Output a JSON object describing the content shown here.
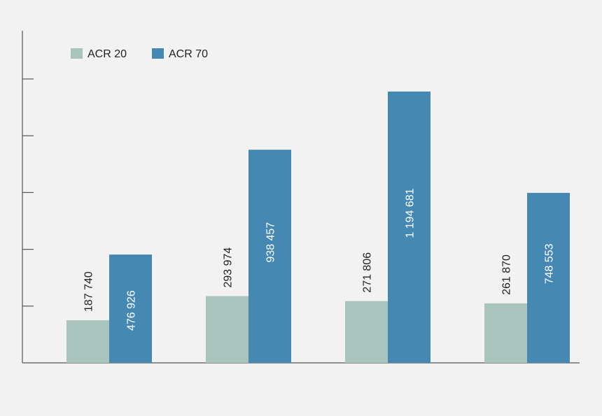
{
  "chart_data": {
    "type": "bar",
    "categories": [
      "",
      "",
      "",
      ""
    ],
    "series": [
      {
        "name": "ACR 20",
        "color": "#a9c4bc",
        "label_color": "#222222",
        "values": [
          187740,
          293974,
          271806,
          261870
        ],
        "labels": [
          "187 740",
          "293 974",
          "271 806",
          "261 870"
        ]
      },
      {
        "name": "ACR 70",
        "color": "#4589b3",
        "label_color": "#ffffff",
        "values": [
          476926,
          938457,
          1194681,
          748553
        ],
        "labels": [
          "476 926",
          "938 457",
          "1 194 681",
          "748 553"
        ]
      }
    ],
    "ylim": [
      0,
      1450000
    ],
    "y_tick_step": 250000,
    "y_tick_labels_shown": false,
    "legend_position": "top-left",
    "grid": false
  }
}
